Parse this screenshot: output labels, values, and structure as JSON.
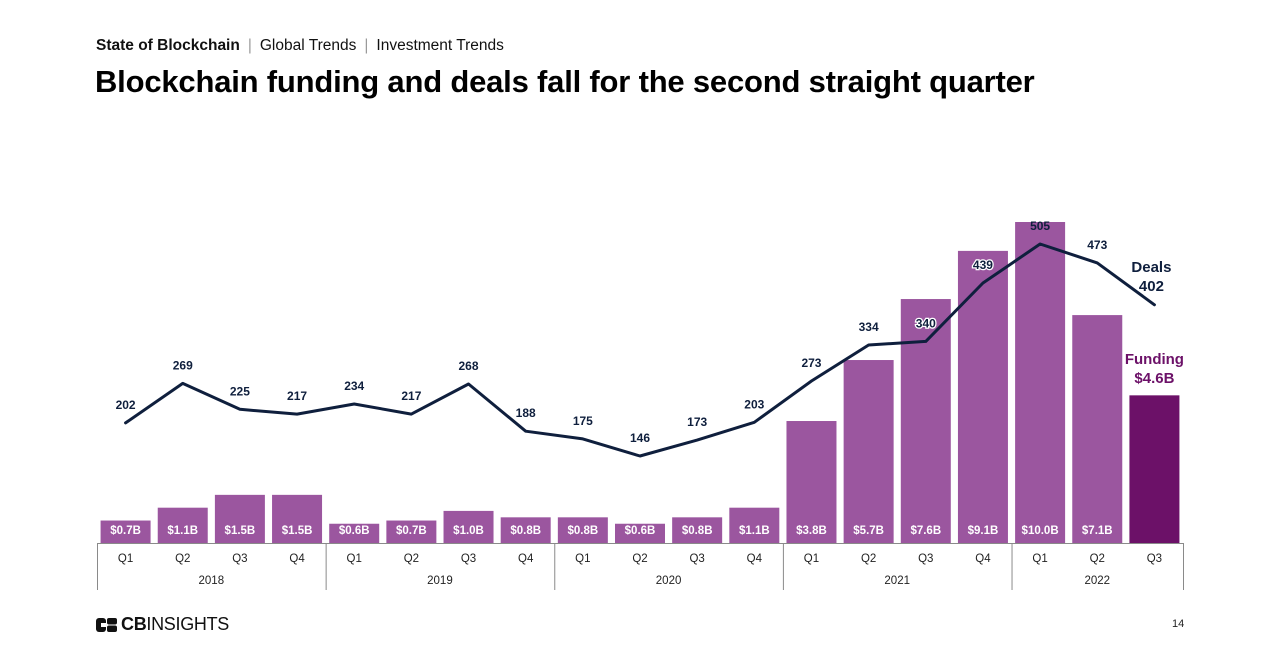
{
  "breadcrumb": {
    "items": [
      "State of Blockchain",
      "Global Trends",
      "Investment Trends"
    ]
  },
  "page_title": "Blockchain funding and deals fall for the second straight quarter",
  "footer": {
    "logo_bold": "CB",
    "logo_rest": "INSIGHTS",
    "page_number": "14"
  },
  "colors": {
    "bar": "#9b569f",
    "bar_highlight": "#6c1168",
    "line": "#0f1f3d",
    "funding_label": "#6c1168"
  },
  "chart_data": {
    "type": "bar+line",
    "title": "Blockchain funding and deals fall for the second straight quarter",
    "xlabel": "",
    "ylabel": "",
    "categories": [
      "Q1",
      "Q2",
      "Q3",
      "Q4",
      "Q1",
      "Q2",
      "Q3",
      "Q4",
      "Q1",
      "Q2",
      "Q3",
      "Q4",
      "Q1",
      "Q2",
      "Q3",
      "Q4",
      "Q1",
      "Q2",
      "Q3"
    ],
    "years": [
      {
        "label": "2018",
        "count": 4
      },
      {
        "label": "2019",
        "count": 4
      },
      {
        "label": "2020",
        "count": 4
      },
      {
        "label": "2021",
        "count": 4
      },
      {
        "label": "2022",
        "count": 3
      }
    ],
    "series": [
      {
        "name": "Funding",
        "unit": "$B",
        "type": "bar",
        "values": [
          0.7,
          1.1,
          1.5,
          1.5,
          0.6,
          0.7,
          1.0,
          0.8,
          0.8,
          0.6,
          0.8,
          1.1,
          3.8,
          5.7,
          7.6,
          9.1,
          10.0,
          7.1,
          4.6
        ],
        "labels": [
          "$0.7B",
          "$1.1B",
          "$1.5B",
          "$1.5B",
          "$0.6B",
          "$0.7B",
          "$1.0B",
          "$0.8B",
          "$0.8B",
          "$0.6B",
          "$0.8B",
          "$1.1B",
          "$3.8B",
          "$5.7B",
          "$7.6B",
          "$9.1B",
          "$10.0B",
          "$7.1B",
          ""
        ]
      },
      {
        "name": "Deals",
        "type": "line",
        "values": [
          202,
          269,
          225,
          217,
          234,
          217,
          268,
          188,
          175,
          146,
          173,
          203,
          273,
          334,
          340,
          439,
          505,
          473,
          402
        ]
      }
    ],
    "annotations": {
      "deals_name": "Deals",
      "deals_last": "402",
      "funding_name": "Funding",
      "funding_last": "$4.6B"
    },
    "ylim_bar": [
      0,
      10.0
    ],
    "ylim_line": [
      146,
      505
    ],
    "grid": false,
    "legend": "inline-right"
  }
}
